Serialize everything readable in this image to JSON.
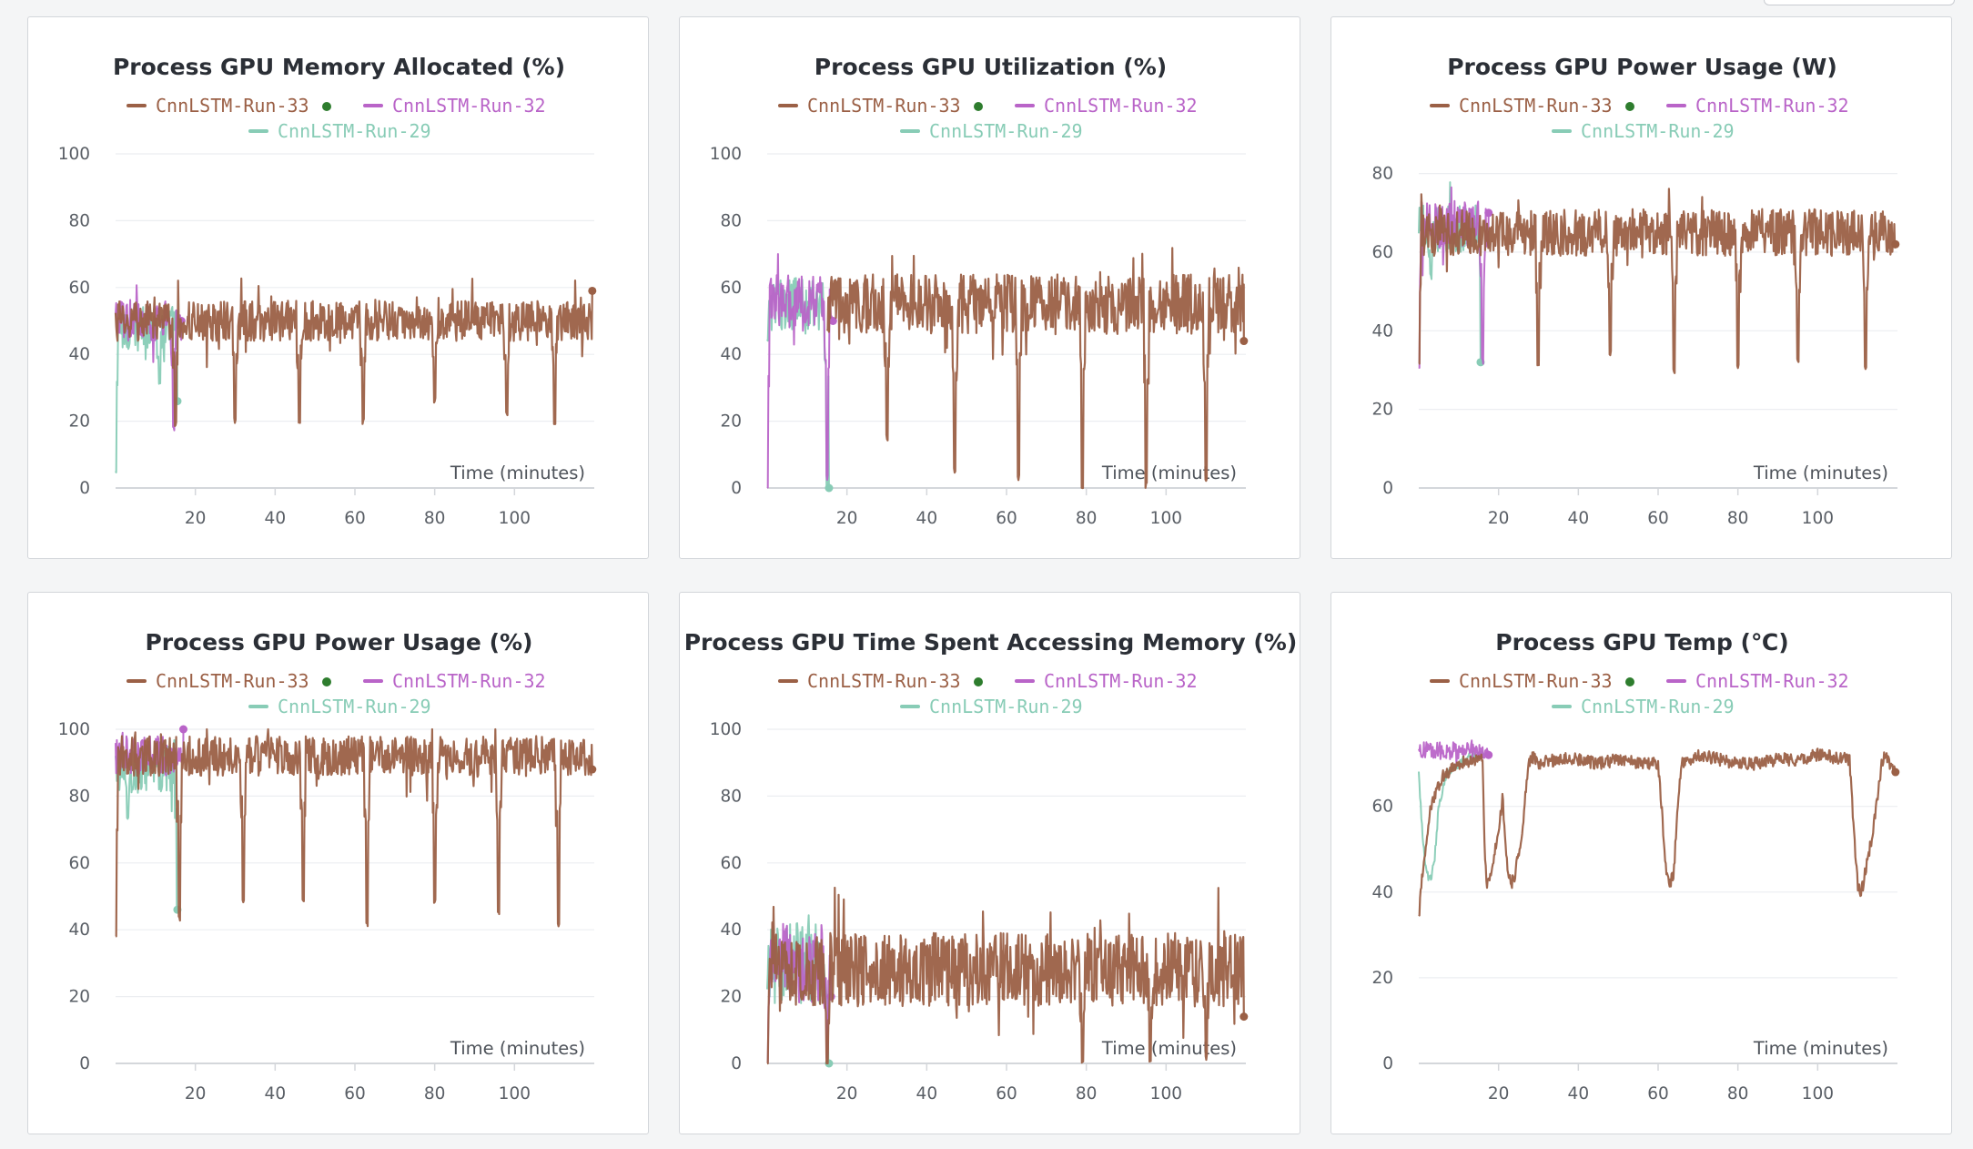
{
  "colors": {
    "run33": "#9b6046",
    "run32": "#b964c8",
    "run29": "#88ccb6",
    "active_dot": "#2e7d2e",
    "grid": "#eceef1",
    "axis": "#d4d7db"
  },
  "legend": [
    {
      "label": "CnnLSTM-Run-33",
      "color": "#9b6046",
      "active": true
    },
    {
      "label": "CnnLSTM-Run-32",
      "color": "#b964c8",
      "active": false
    },
    {
      "label": "CnnLSTM-Run-29",
      "color": "#88ccb6",
      "active": false
    }
  ],
  "x_axis_title": "Time (minutes)",
  "chart_data": [
    {
      "type": "line",
      "title": "Process GPU Memory Allocated (%)",
      "xlabel": "Time (minutes)",
      "xlim": [
        0,
        120
      ],
      "xticks": [
        20,
        40,
        60,
        80,
        100
      ],
      "ylim": [
        0,
        100
      ],
      "yticks": [
        0,
        20,
        40,
        60,
        80,
        100
      ],
      "series": [
        {
          "name": "CnnLSTM-Run-33",
          "base": 50,
          "noise": 6,
          "spikes": [
            [
              15,
              19
            ],
            [
              30,
              20
            ],
            [
              46,
              20
            ],
            [
              62,
              20
            ],
            [
              80,
              26
            ],
            [
              98,
              22
            ],
            [
              110,
              20
            ]
          ],
          "x_start": 0,
          "x_end": 119.5,
          "end_value": 59
        },
        {
          "name": "CnnLSTM-Run-32",
          "base": 50,
          "noise": 6,
          "spikes": [
            [
              14.5,
              18
            ]
          ],
          "x_start": 0,
          "x_end": 16.5,
          "end_value": 50
        },
        {
          "name": "CnnLSTM-Run-29",
          "base": 48,
          "noise": 7,
          "spikes": [
            [
              0,
              5
            ],
            [
              11,
              32
            ]
          ],
          "x_start": 0,
          "x_end": 15.5,
          "end_value": 26
        }
      ]
    },
    {
      "type": "line",
      "title": "Process GPU Utilization (%)",
      "xlabel": "Time (minutes)",
      "xlim": [
        0,
        120
      ],
      "xticks": [
        20,
        40,
        60,
        80,
        100
      ],
      "ylim": [
        0,
        100
      ],
      "yticks": [
        0,
        20,
        40,
        60,
        80,
        100
      ],
      "series": [
        {
          "name": "CnnLSTM-Run-33",
          "base": 55,
          "noise": 9,
          "spikes": [
            [
              30,
              15
            ],
            [
              47,
              5
            ],
            [
              63,
              3
            ],
            [
              79,
              0
            ],
            [
              95,
              1
            ],
            [
              110,
              2
            ]
          ],
          "x_start": 15,
          "x_end": 119.5,
          "end_value": 44
        },
        {
          "name": "CnnLSTM-Run-32",
          "base": 56,
          "noise": 8,
          "spikes": [
            [
              0,
              0
            ],
            [
              15,
              3
            ]
          ],
          "x_start": 0,
          "x_end": 16.5,
          "end_value": 50
        },
        {
          "name": "CnnLSTM-Run-29",
          "base": 55,
          "noise": 8,
          "spikes": [
            [
              0,
              45
            ],
            [
              15,
              0
            ]
          ],
          "x_start": 0,
          "x_end": 15.5,
          "end_value": 0
        }
      ]
    },
    {
      "type": "line",
      "title": "Process GPU Power Usage (W)",
      "xlabel": "Time (minutes)",
      "xlim": [
        0,
        120
      ],
      "xticks": [
        20,
        40,
        60,
        80,
        100
      ],
      "ylim": [
        0,
        85
      ],
      "yticks": [
        0,
        20,
        40,
        60,
        80
      ],
      "series": [
        {
          "name": "CnnLSTM-Run-33",
          "base": 65,
          "noise": 6,
          "spikes": [
            [
              0,
              31
            ],
            [
              30,
              32
            ],
            [
              48,
              34
            ],
            [
              64,
              30
            ],
            [
              80,
              31
            ],
            [
              95,
              32
            ],
            [
              112,
              30
            ]
          ],
          "x_start": 0,
          "x_end": 119.5,
          "end_value": 62
        },
        {
          "name": "CnnLSTM-Run-32",
          "base": 67,
          "noise": 6,
          "spikes": [
            [
              0,
              31
            ],
            [
              16,
              32
            ]
          ],
          "x_start": 0,
          "x_end": 17.5,
          "end_value": 70
        },
        {
          "name": "CnnLSTM-Run-29",
          "base": 66,
          "noise": 6,
          "spikes": [
            [
              3,
              54
            ],
            [
              16,
              32
            ]
          ],
          "x_start": 0,
          "x_end": 15.5,
          "end_value": 32
        }
      ]
    },
    {
      "type": "line",
      "title": "Process GPU Power Usage (%)",
      "xlabel": "Time (minutes)",
      "xlim": [
        0,
        120
      ],
      "xticks": [
        20,
        40,
        60,
        80,
        100
      ],
      "ylim": [
        0,
        100
      ],
      "yticks": [
        0,
        20,
        40,
        60,
        80,
        100
      ],
      "series": [
        {
          "name": "CnnLSTM-Run-33",
          "base": 92,
          "noise": 6,
          "spikes": [
            [
              0,
              38
            ],
            [
              16,
              43
            ],
            [
              32,
              48
            ],
            [
              47,
              49
            ],
            [
              63,
              42
            ],
            [
              80,
              48
            ],
            [
              96,
              45
            ],
            [
              111,
              42
            ]
          ],
          "x_start": 0,
          "x_end": 119.5,
          "end_value": 88
        },
        {
          "name": "CnnLSTM-Run-32",
          "base": 92,
          "noise": 6,
          "spikes": [],
          "x_start": 0,
          "x_end": 17.0,
          "end_value": 100
        },
        {
          "name": "CnnLSTM-Run-29",
          "base": 88,
          "noise": 7,
          "spikes": [
            [
              3,
              73
            ],
            [
              15.5,
              46
            ]
          ],
          "x_start": 0,
          "x_end": 15.5,
          "end_value": 46
        }
      ]
    },
    {
      "type": "line",
      "title": "Process GPU Time Spent Accessing Memory (%)",
      "xlabel": "Time (minutes)",
      "xlim": [
        0,
        120
      ],
      "xticks": [
        20,
        40,
        60,
        80,
        100
      ],
      "ylim": [
        0,
        100
      ],
      "yticks": [
        0,
        20,
        40,
        60,
        80,
        100
      ],
      "series": [
        {
          "name": "CnnLSTM-Run-33",
          "base": 28,
          "noise": 11,
          "spikes": [
            [
              0,
              0
            ],
            [
              15,
              0
            ],
            [
              79,
              1
            ],
            [
              96,
              1
            ],
            [
              110,
              2
            ]
          ],
          "x_start": 0,
          "x_end": 119.5,
          "end_value": 14
        },
        {
          "name": "CnnLSTM-Run-32",
          "base": 30,
          "noise": 12,
          "spikes": [
            [
              0,
              0
            ],
            [
              15,
              2
            ]
          ],
          "x_start": 0,
          "x_end": 16.0,
          "end_value": 20
        },
        {
          "name": "CnnLSTM-Run-29",
          "base": 30,
          "noise": 12,
          "spikes": [
            [
              15.5,
              0
            ]
          ],
          "x_start": 0,
          "x_end": 15.5,
          "end_value": 0
        }
      ]
    },
    {
      "type": "line",
      "title": "Process GPU Temp (℃)",
      "xlabel": "Time (minutes)",
      "xlim": [
        0,
        120
      ],
      "xticks": [
        20,
        40,
        60,
        80,
        100
      ],
      "ylim": [
        0,
        78
      ],
      "yticks": [
        0,
        20,
        40,
        60
      ],
      "series": [
        {
          "name": "CnnLSTM-Run-33",
          "points": [
            [
              0,
              34
            ],
            [
              1,
              45
            ],
            [
              3,
              60
            ],
            [
              6,
              67
            ],
            [
              10,
              70
            ],
            [
              14,
              71
            ],
            [
              16,
              71
            ],
            [
              16.5,
              50
            ],
            [
              17,
              42
            ],
            [
              18,
              43
            ],
            [
              20,
              55
            ],
            [
              21,
              62
            ],
            [
              22,
              48
            ],
            [
              23,
              42
            ],
            [
              24,
              43
            ],
            [
              26,
              55
            ],
            [
              27,
              65
            ],
            [
              28,
              72
            ],
            [
              30,
              70
            ],
            [
              35,
              71
            ],
            [
              40,
              71
            ],
            [
              45,
              70
            ],
            [
              50,
              71
            ],
            [
              55,
              70
            ],
            [
              60,
              70
            ],
            [
              61,
              58
            ],
            [
              62,
              45
            ],
            [
              63,
              42
            ],
            [
              64,
              45
            ],
            [
              65,
              62
            ],
            [
              66,
              70
            ],
            [
              70,
              72
            ],
            [
              75,
              71
            ],
            [
              80,
              70
            ],
            [
              85,
              70
            ],
            [
              90,
              71
            ],
            [
              95,
              71
            ],
            [
              100,
              72
            ],
            [
              108,
              71
            ],
            [
              109,
              55
            ],
            [
              110,
              42
            ],
            [
              111,
              40
            ],
            [
              112,
              45
            ],
            [
              114,
              55
            ],
            [
              116,
              70
            ],
            [
              117,
              73
            ],
            [
              118,
              70
            ],
            [
              119.5,
              68
            ]
          ],
          "noise": 1.5,
          "x_start": 0,
          "x_end": 119.5,
          "end_value": 68
        },
        {
          "name": "CnnLSTM-Run-32",
          "base": 73,
          "noise": 2,
          "spikes": [],
          "x_start": 0,
          "x_end": 17.5,
          "end_value": 72
        },
        {
          "name": "CnnLSTM-Run-29",
          "points": [
            [
              0,
              68
            ],
            [
              1,
              52
            ],
            [
              2,
              44
            ],
            [
              3,
              43
            ],
            [
              4,
              48
            ],
            [
              5,
              60
            ],
            [
              7,
              68
            ],
            [
              10,
              70
            ],
            [
              13,
              72
            ],
            [
              15.5,
              72
            ]
          ],
          "noise": 1,
          "x_start": 0,
          "x_end": 15.5,
          "end_value": 72
        }
      ]
    }
  ]
}
